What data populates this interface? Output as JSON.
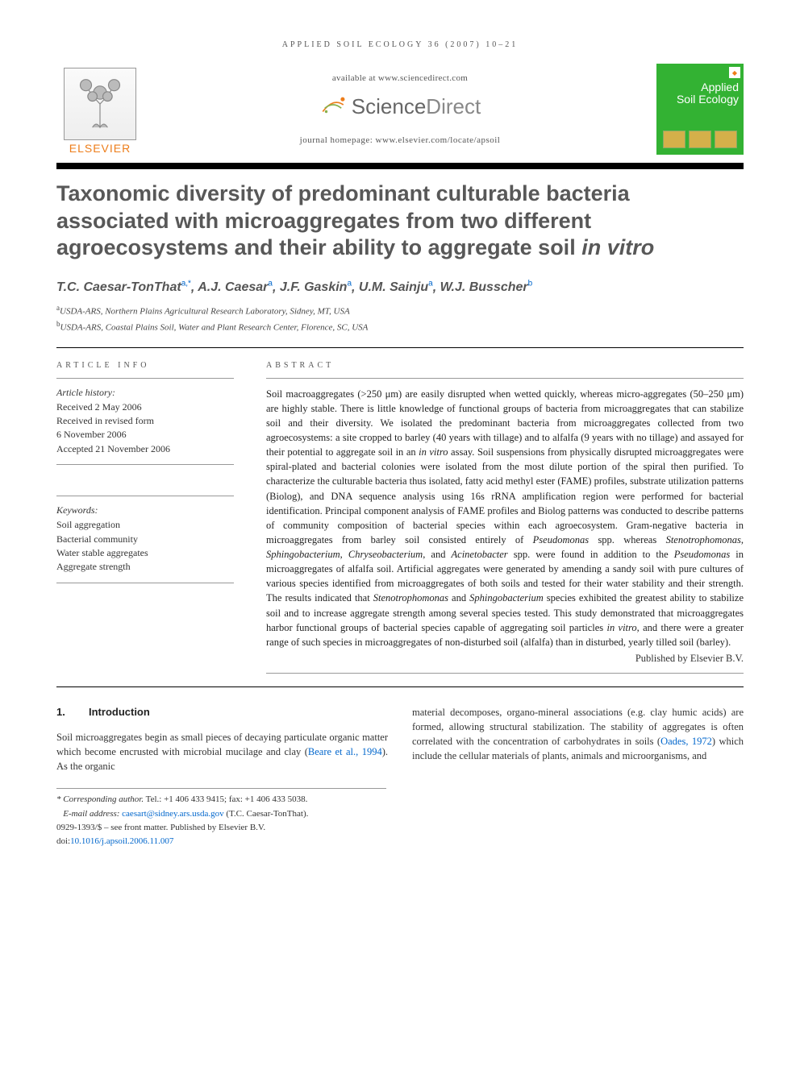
{
  "running_head": "APPLIED SOIL ECOLOGY 36 (2007) 10–21",
  "header": {
    "available_at": "available at www.sciencedirect.com",
    "sciencedirect": {
      "word1": "Science",
      "word2": "Direct"
    },
    "homepage": "journal homepage: www.elsevier.com/locate/apsoil",
    "elsevier_label": "ELSEVIER",
    "journal_cover": {
      "line1": "Applied",
      "line2": "Soil Ecology"
    }
  },
  "title": {
    "main": "Taxonomic diversity of predominant culturable bacteria associated with microaggregates from two different agroecosystems and their ability to aggregate soil ",
    "ital": "in vitro"
  },
  "authors": [
    {
      "name": "T.C. Caesar-TonThat",
      "sup": "a,*"
    },
    {
      "name": "A.J. Caesar",
      "sup": "a"
    },
    {
      "name": "J.F. Gaskin",
      "sup": "a"
    },
    {
      "name": "U.M. Sainju",
      "sup": "a"
    },
    {
      "name": "W.J. Busscher",
      "sup": "b"
    }
  ],
  "affiliations": [
    {
      "sup": "a",
      "text": "USDA-ARS, Northern Plains Agricultural Research Laboratory, Sidney, MT, USA"
    },
    {
      "sup": "b",
      "text": "USDA-ARS, Coastal Plains Soil, Water and Plant Research Center, Florence, SC, USA"
    }
  ],
  "article_info": {
    "label": "ARTICLE INFO",
    "history_head": "Article history:",
    "history": [
      "Received 2 May 2006",
      "Received in revised form",
      "6 November 2006",
      "Accepted 21 November 2006"
    ],
    "keywords_head": "Keywords:",
    "keywords": [
      "Soil aggregation",
      "Bacterial community",
      "Water stable aggregates",
      "Aggregate strength"
    ]
  },
  "abstract": {
    "label": "ABSTRACT",
    "text_parts": [
      {
        "t": "Soil macroaggregates (>250 μm) are easily disrupted when wetted quickly, whereas micro-aggregates (50–250 μm) are highly stable. There is little knowledge of functional groups of bacteria from microaggregates that can stabilize soil and their diversity. We isolated the predominant bacteria from microaggregates collected from two agroecosystems: a site cropped to barley (40 years with tillage) and to alfalfa (9 years with no tillage) and assayed for their potential to aggregate soil in an "
      },
      {
        "t": "in vitro",
        "i": true
      },
      {
        "t": " assay. Soil suspensions from physically disrupted microaggregates were spiral-plated and bacterial colonies were isolated from the most dilute portion of the spiral then purified. To characterize the culturable bacteria thus isolated, fatty acid methyl ester (FAME) profiles, substrate utilization patterns (Biolog), and DNA sequence analysis using 16s rRNA amplification region were performed for bacterial identification. Principal component analysis of FAME profiles and Biolog patterns was conducted to describe patterns of community composition of bacterial species within each agroecosystem. Gram-negative bacteria in microaggregates from barley soil consisted entirely of "
      },
      {
        "t": "Pseudomonas",
        "i": true
      },
      {
        "t": " spp. whereas "
      },
      {
        "t": "Stenotrophomonas",
        "i": true
      },
      {
        "t": ", "
      },
      {
        "t": "Sphingobacterium",
        "i": true
      },
      {
        "t": ", "
      },
      {
        "t": "Chryseobacterium",
        "i": true
      },
      {
        "t": ", and "
      },
      {
        "t": "Acinetobacter",
        "i": true
      },
      {
        "t": " spp. were found in addition to the "
      },
      {
        "t": "Pseudomonas",
        "i": true
      },
      {
        "t": " in microaggregates of alfalfa soil. Artificial aggregates were generated by amending a sandy soil with pure cultures of various species identified from microaggregates of both soils and tested for their water stability and their strength. The results indicated that "
      },
      {
        "t": "Stenotrophomonas",
        "i": true
      },
      {
        "t": " and "
      },
      {
        "t": "Sphingobacterium",
        "i": true
      },
      {
        "t": " species exhibited the greatest ability to stabilize soil and to increase aggregate strength among several species tested. This study demonstrated that microaggregates harbor functional groups of bacterial species capable of aggregating soil particles "
      },
      {
        "t": "in vitro",
        "i": true
      },
      {
        "t": ", and there were a greater range of such species in microaggregates of non-disturbed soil (alfalfa) than in disturbed, yearly tilled soil (barley)."
      }
    ],
    "published_by": "Published by Elsevier B.V."
  },
  "body": {
    "section_num": "1.",
    "section_title": "Introduction",
    "col1_a": "Soil microaggregates begin as small pieces of decaying particulate organic matter which become encrusted with microbial mucilage and clay (",
    "col1_cite": "Beare et al., 1994",
    "col1_b": "). As the organic",
    "col2_a": "material decomposes, organo-mineral associations (e.g. clay humic acids) are formed, allowing structural stabilization. The stability of aggregates is often correlated with the concentration of carbohydrates in soils (",
    "col2_cite": "Oades, 1972",
    "col2_b": ") which include the cellular materials of plants, animals and microorganisms, and"
  },
  "footnotes": {
    "corr_label": "* Corresponding author.",
    "corr_rest": " Tel.: +1 406 433 9415; fax: +1 406 433 5038.",
    "email_label": "E-mail address: ",
    "email": "caesart@sidney.ars.usda.gov",
    "email_paren": " (T.C. Caesar-TonThat).",
    "front_matter": "0929-1393/$ – see front matter. Published by Elsevier B.V.",
    "doi_label": "doi:",
    "doi": "10.1016/j.apsoil.2006.11.007"
  },
  "colors": {
    "elsevier_orange": "#ed7d1a",
    "link_blue": "#0066cc",
    "cover_green": "#33b233",
    "title_gray": "#585858"
  }
}
